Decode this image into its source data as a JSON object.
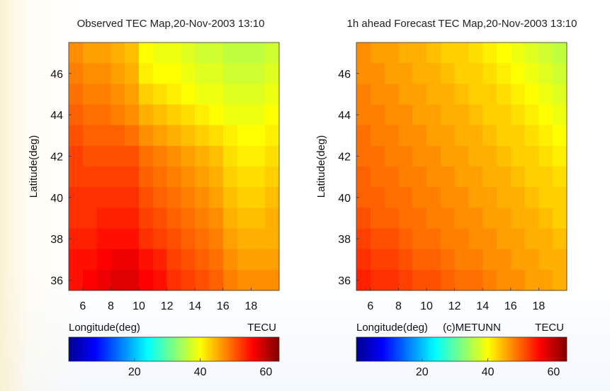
{
  "chart_data": [
    {
      "type": "heatmap",
      "title": "Observed TEC Map,20-Nov-2003 13:10",
      "xlabel": "Longitude(deg)",
      "ylabel": "Latitude(deg)",
      "xlim": [
        5,
        20
      ],
      "ylim": [
        35.5,
        47.5
      ],
      "xticks": [
        6,
        8,
        10,
        12,
        14,
        16,
        18
      ],
      "yticks": [
        36,
        38,
        40,
        42,
        44,
        46
      ],
      "x": [
        5.5,
        6.5,
        7.5,
        8.5,
        9.5,
        10.5,
        11.5,
        12.5,
        13.5,
        14.5,
        15.5,
        16.5,
        17.5,
        18.5,
        19.5
      ],
      "y": [
        47,
        46,
        45,
        44,
        43,
        42,
        41,
        40,
        39,
        38,
        37,
        36
      ],
      "values": [
        [
          47,
          46,
          46,
          45,
          44,
          40,
          39,
          39,
          38,
          37,
          37,
          36,
          36,
          36,
          37
        ],
        [
          48,
          47,
          47,
          46,
          45,
          41,
          40,
          40,
          39,
          38,
          38,
          37,
          37,
          37,
          38
        ],
        [
          49,
          48,
          48,
          47,
          46,
          43,
          42,
          41,
          40,
          39,
          39,
          38,
          38,
          38,
          39
        ],
        [
          50,
          49,
          49,
          48,
          47,
          45,
          44,
          43,
          42,
          41,
          40,
          39,
          39,
          39,
          40
        ],
        [
          51,
          50,
          50,
          50,
          49,
          47,
          46,
          45,
          44,
          43,
          42,
          41,
          40,
          40,
          41
        ],
        [
          52,
          51,
          51,
          51,
          51,
          49,
          48,
          47,
          46,
          45,
          44,
          42,
          41,
          41,
          42
        ],
        [
          52,
          52,
          52,
          52,
          52,
          50,
          49,
          48,
          47,
          46,
          45,
          43,
          42,
          42,
          43
        ],
        [
          53,
          53,
          53,
          53,
          53,
          51,
          50,
          49,
          48,
          47,
          46,
          44,
          43,
          43,
          44
        ],
        [
          53,
          53,
          54,
          54,
          54,
          52,
          51,
          50,
          49,
          48,
          47,
          45,
          44,
          44,
          45
        ],
        [
          54,
          54,
          55,
          55,
          55,
          53,
          52,
          51,
          50,
          49,
          48,
          46,
          45,
          45,
          45
        ],
        [
          55,
          55,
          56,
          57,
          57,
          55,
          54,
          52,
          51,
          50,
          49,
          47,
          46,
          46,
          46
        ],
        [
          55,
          56,
          57,
          58,
          58,
          56,
          55,
          53,
          52,
          51,
          50,
          48,
          47,
          47,
          47
        ]
      ],
      "colorbar": {
        "label": "TECU",
        "ticks": [
          20,
          40,
          60
        ],
        "range": [
          0,
          64
        ]
      }
    },
    {
      "type": "heatmap",
      "title": "1h ahead Forecast TEC Map,20-Nov-2003 13:10",
      "xlabel": "Longitude(deg)",
      "ylabel": "Latitude(deg)",
      "annotation": "(c)METUNN",
      "xlim": [
        5,
        20
      ],
      "ylim": [
        35.5,
        47.5
      ],
      "xticks": [
        6,
        8,
        10,
        12,
        14,
        16,
        18
      ],
      "yticks": [
        36,
        38,
        40,
        42,
        44,
        46
      ],
      "x": [
        5.5,
        6.5,
        7.5,
        8.5,
        9.5,
        10.5,
        11.5,
        12.5,
        13.5,
        14.5,
        15.5,
        16.5,
        17.5,
        18.5,
        19.5
      ],
      "y": [
        47,
        46,
        45,
        44,
        43,
        42,
        41,
        40,
        39,
        38,
        37,
        36
      ],
      "values": [
        [
          47,
          46,
          46,
          45,
          45,
          44,
          43,
          43,
          42,
          41,
          40,
          39,
          38,
          37,
          36
        ],
        [
          47,
          47,
          46,
          46,
          45,
          45,
          44,
          43,
          43,
          42,
          41,
          40,
          39,
          38,
          37
        ],
        [
          48,
          47,
          47,
          46,
          46,
          45,
          45,
          44,
          43,
          43,
          42,
          41,
          40,
          39,
          38
        ],
        [
          48,
          48,
          47,
          47,
          46,
          46,
          45,
          45,
          44,
          43,
          43,
          42,
          41,
          40,
          39
        ],
        [
          49,
          48,
          48,
          47,
          47,
          46,
          46,
          45,
          45,
          44,
          43,
          43,
          42,
          41,
          40
        ],
        [
          49,
          49,
          48,
          48,
          47,
          47,
          46,
          46,
          45,
          45,
          44,
          43,
          43,
          42,
          41
        ],
        [
          50,
          49,
          49,
          48,
          48,
          47,
          47,
          46,
          46,
          45,
          45,
          44,
          43,
          43,
          42
        ],
        [
          50,
          50,
          49,
          49,
          48,
          48,
          47,
          47,
          46,
          46,
          45,
          45,
          44,
          43,
          43
        ],
        [
          51,
          50,
          50,
          49,
          49,
          48,
          48,
          47,
          47,
          46,
          46,
          45,
          45,
          44,
          43
        ],
        [
          52,
          51,
          51,
          50,
          49,
          49,
          48,
          48,
          47,
          47,
          46,
          46,
          45,
          45,
          44
        ],
        [
          53,
          52,
          52,
          51,
          50,
          50,
          49,
          48,
          48,
          47,
          47,
          46,
          46,
          45,
          45
        ],
        [
          54,
          53,
          53,
          52,
          51,
          51,
          50,
          49,
          49,
          48,
          47,
          47,
          46,
          46,
          45
        ]
      ],
      "colorbar": {
        "label": "TECU",
        "ticks": [
          20,
          40,
          60
        ],
        "range": [
          0,
          64
        ]
      }
    }
  ]
}
